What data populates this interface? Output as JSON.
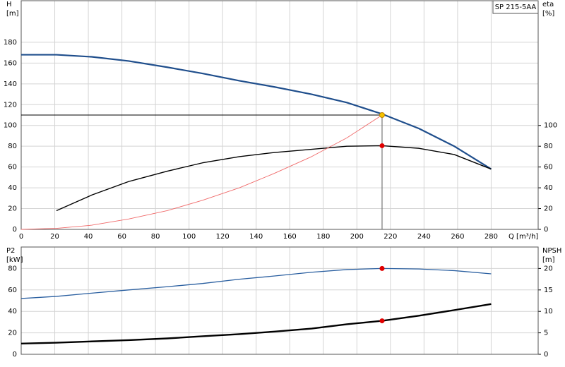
{
  "chart_data": [
    {
      "type": "line",
      "title": "SP 215-5AA",
      "ylabel": "H",
      "yunit": "[m]",
      "y2label": "eta",
      "y2unit": "[%]",
      "xlabel": "Q [m³/h]",
      "xlim": [
        0,
        308
      ],
      "xticks": [
        0,
        20,
        40,
        60,
        80,
        100,
        120,
        140,
        160,
        180,
        200,
        220,
        240,
        260,
        280
      ],
      "ylim": [
        0,
        220
      ],
      "yticks": [
        0,
        20,
        40,
        60,
        80,
        100,
        120,
        140,
        160,
        180
      ],
      "y2lim": [
        0,
        220
      ],
      "y2ticks": [
        0,
        20,
        40,
        60,
        80,
        100
      ],
      "grid": true,
      "series": [
        {
          "color": "#1f4e8c",
          "x": [
            0,
            21,
            42,
            64,
            87,
            108,
            130,
            151,
            173,
            194,
            215,
            237,
            258,
            280
          ],
          "values": [
            168,
            168,
            166,
            162,
            156,
            150,
            143,
            137,
            130,
            122,
            111,
            97,
            80,
            58
          ]
        },
        {
          "color": "#000000",
          "axis": "y2",
          "x": [
            21,
            42,
            64,
            87,
            108,
            130,
            151,
            173,
            194,
            215,
            237,
            258,
            280
          ],
          "values": [
            18,
            33,
            46,
            56,
            64,
            70,
            74,
            77,
            80,
            80.5,
            78,
            72,
            58
          ]
        },
        {
          "color": "#f06a6a",
          "x": [
            0,
            21,
            42,
            64,
            87,
            108,
            130,
            151,
            173,
            194,
            215
          ],
          "values": [
            0,
            1,
            4,
            10,
            18,
            28,
            40,
            54,
            70,
            88,
            110
          ]
        }
      ],
      "markers": [
        {
          "x": 215,
          "y": 110,
          "color": "#f5c400",
          "guides": true
        },
        {
          "x": 215,
          "y": 80.5,
          "axis": "y2",
          "color": "#e00000"
        }
      ]
    },
    {
      "type": "line",
      "ylabel": "P2",
      "yunit": "[kW]",
      "y2label": "NPSH",
      "y2unit": "[m]",
      "xlim": [
        0,
        308
      ],
      "xticks": [
        0,
        20,
        40,
        60,
        80,
        100,
        120,
        140,
        160,
        180,
        200,
        220,
        240,
        260,
        280
      ],
      "ylim": [
        0,
        100
      ],
      "yticks": [
        0,
        20,
        40,
        60,
        80
      ],
      "y2lim": [
        0,
        25
      ],
      "y2ticks": [
        0,
        5,
        10,
        15,
        20
      ],
      "grid": true,
      "series": [
        {
          "color": "#2a5fa0",
          "x": [
            0,
            21,
            42,
            64,
            87,
            108,
            130,
            151,
            173,
            194,
            215,
            237,
            258,
            280
          ],
          "values": [
            52,
            54,
            57,
            60,
            63,
            66,
            70,
            73,
            76.5,
            79,
            80,
            79.5,
            78,
            75
          ]
        },
        {
          "color": "#000000",
          "axis": "y2",
          "x": [
            0,
            21,
            42,
            64,
            87,
            108,
            130,
            151,
            173,
            194,
            215,
            237,
            258,
            280
          ],
          "values": [
            2.5,
            2.7,
            3,
            3.3,
            3.7,
            4.2,
            4.7,
            5.3,
            6,
            7,
            7.8,
            9,
            10.3,
            11.7
          ]
        }
      ],
      "markers": [
        {
          "x": 215,
          "y": 80,
          "color": "#e00000"
        },
        {
          "x": 215,
          "y": 7.8,
          "axis": "y2",
          "color": "#e00000"
        }
      ]
    }
  ]
}
